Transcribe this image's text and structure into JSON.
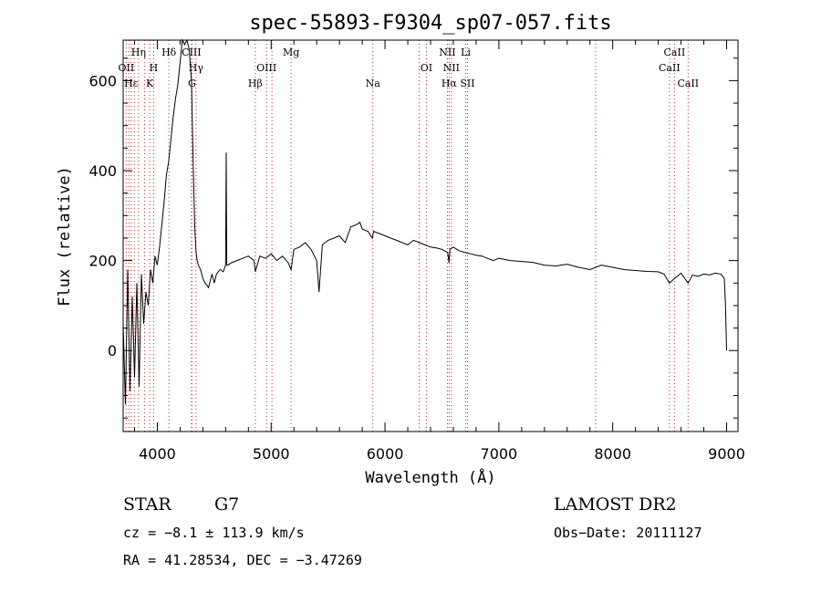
{
  "chart_data": {
    "type": "line",
    "title": "spec-55893-F9304_sp07-057.fits",
    "xlabel": "Wavelength (Å)",
    "ylabel": "Flux (relative)",
    "xlim": [
      3700,
      9100
    ],
    "ylim": [
      -180,
      690
    ],
    "xticks": [
      4000,
      5000,
      6000,
      7000,
      8000,
      9000
    ],
    "yticks": [
      {
        "value": 0,
        "label": "0"
      },
      {
        "value": 200,
        "label": "200"
      },
      {
        "value": 400,
        "label": "400"
      },
      {
        "value": 600,
        "label": "600"
      }
    ],
    "grid": false,
    "series": [
      {
        "x": [
          3700,
          3720,
          3740,
          3760,
          3780,
          3800,
          3820,
          3840,
          3860,
          3880,
          3900,
          3920,
          3940,
          3960,
          3980,
          4000,
          4020,
          4040,
          4060,
          4080,
          4100,
          4120,
          4140,
          4160,
          4180,
          4200,
          4220,
          4240,
          4260,
          4280,
          4300,
          4310,
          4320,
          4330,
          4340,
          4350,
          4360,
          4380,
          4400,
          4420,
          4450,
          4480,
          4500,
          4520,
          4550,
          4580,
          4600,
          4605,
          4610,
          4620,
          4650,
          4700,
          4750,
          4800,
          4850,
          4861,
          4900,
          4950,
          5000,
          5050,
          5100,
          5150,
          5175,
          5200,
          5250,
          5300,
          5350,
          5400,
          5420,
          5450,
          5500,
          5550,
          5600,
          5650,
          5700,
          5750,
          5780,
          5800,
          5850,
          5889,
          5900,
          5950,
          6000,
          6050,
          6100,
          6150,
          6200,
          6250,
          6300,
          6350,
          6400,
          6450,
          6500,
          6550,
          6563,
          6570,
          6600,
          6650,
          6700,
          6750,
          6800,
          6850,
          6900,
          6950,
          7000,
          7100,
          7200,
          7300,
          7400,
          7500,
          7600,
          7700,
          7800,
          7900,
          8000,
          8100,
          8200,
          8300,
          8400,
          8450,
          8498,
          8542,
          8600,
          8662,
          8700,
          8750,
          8800,
          8850,
          8900,
          8950,
          8980,
          8990,
          9000
        ],
        "y": [
          60,
          -120,
          180,
          -90,
          120,
          -60,
          150,
          -80,
          170,
          60,
          130,
          100,
          180,
          150,
          210,
          190,
          230,
          280,
          330,
          390,
          420,
          470,
          520,
          560,
          590,
          640,
          690,
          680,
          690,
          670,
          600,
          480,
          360,
          270,
          220,
          200,
          190,
          180,
          160,
          150,
          140,
          170,
          150,
          170,
          180,
          175,
          190,
          440,
          190,
          190,
          195,
          200,
          205,
          210,
          200,
          175,
          210,
          205,
          215,
          200,
          210,
          195,
          180,
          225,
          230,
          240,
          225,
          200,
          130,
          235,
          245,
          250,
          255,
          240,
          275,
          280,
          285,
          270,
          265,
          250,
          265,
          260,
          255,
          250,
          245,
          240,
          235,
          245,
          240,
          235,
          230,
          228,
          225,
          218,
          195,
          225,
          230,
          222,
          218,
          215,
          212,
          210,
          205,
          200,
          205,
          200,
          198,
          196,
          190,
          188,
          192,
          185,
          180,
          190,
          185,
          180,
          178,
          176,
          175,
          170,
          150,
          160,
          172,
          150,
          168,
          165,
          170,
          168,
          172,
          170,
          160,
          100,
          0
        ]
      }
    ],
    "line_labels": [
      {
        "text": "Hη",
        "x": 3835,
        "row": 1
      },
      {
        "text": "Hδ",
        "x": 4102,
        "row": 1
      },
      {
        "text": "CIII",
        "x": 4300,
        "row": 1
      },
      {
        "text": "Mg",
        "x": 5175,
        "row": 1
      },
      {
        "text": "NII",
        "x": 6548,
        "row": 1
      },
      {
        "text": "Li",
        "x": 6708,
        "row": 1
      },
      {
        "text": "CaII",
        "x": 8542,
        "row": 1
      },
      {
        "text": "OII",
        "x": 3727,
        "row": 2
      },
      {
        "text": "H",
        "x": 3968,
        "row": 2
      },
      {
        "text": "Hγ",
        "x": 4340,
        "row": 2
      },
      {
        "text": "OIII",
        "x": 4959,
        "row": 2
      },
      {
        "text": "OI",
        "x": 6363,
        "row": 2
      },
      {
        "text": "NII",
        "x": 6583,
        "row": 2
      },
      {
        "text": "CaII",
        "x": 8498,
        "row": 2
      },
      {
        "text": "Hε",
        "x": 3770,
        "row": 3
      },
      {
        "text": "K",
        "x": 3933,
        "row": 3
      },
      {
        "text": "G",
        "x": 4304,
        "row": 3
      },
      {
        "text": "Hβ",
        "x": 4861,
        "row": 3
      },
      {
        "text": "Na",
        "x": 5893,
        "row": 3
      },
      {
        "text": "Hα",
        "x": 6563,
        "row": 3
      },
      {
        "text": "SII",
        "x": 6724,
        "row": 3
      },
      {
        "text": "CaII",
        "x": 8662,
        "row": 3
      }
    ],
    "line_marker_x": [
      3727,
      3750,
      3770,
      3798,
      3835,
      3889,
      3933,
      3968,
      4102,
      4300,
      4304,
      4340,
      4861,
      4959,
      5007,
      5175,
      5893,
      6300,
      6363,
      6548,
      6563,
      6583,
      6708,
      6724,
      7850,
      8498,
      8542,
      8662
    ]
  },
  "footer": {
    "object_class": "STAR",
    "subclass": "G7",
    "cz": "cz = −8.1 ± 113.9 km/s",
    "coords": "RA =  41.28534, DEC =  −3.47269",
    "survey": "LAMOST DR2",
    "obs_date": "Obs−Date: 20111127"
  }
}
